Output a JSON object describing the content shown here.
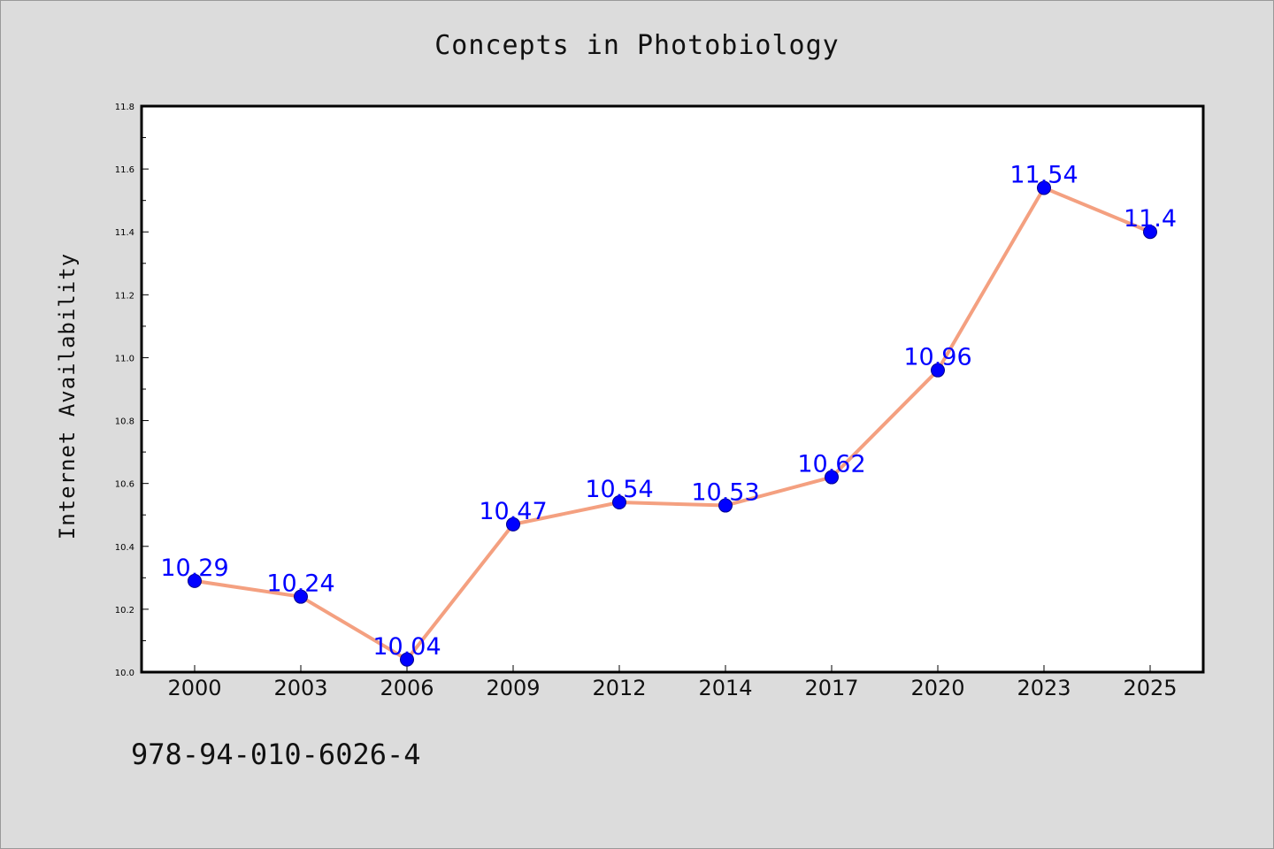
{
  "chart_data": {
    "type": "line",
    "title": "Concepts in Photobiology",
    "xlabel": "",
    "ylabel": "Internet Availability",
    "categories": [
      "2000",
      "2003",
      "2006",
      "2009",
      "2012",
      "2014",
      "2017",
      "2020",
      "2023",
      "2025"
    ],
    "series": [
      {
        "values": [
          10.29,
          10.24,
          10.04,
          10.47,
          10.54,
          10.53,
          10.62,
          10.96,
          11.54,
          11.4
        ],
        "labels": [
          "10.29",
          "10.24",
          "10.04",
          "10.47",
          "10.54",
          "10.53",
          "10.62",
          "10.96",
          "11.54",
          "11.4"
        ]
      }
    ],
    "ylim": [
      10.0,
      11.8
    ],
    "yticks": [
      "10.0",
      "10.2",
      "10.4",
      "10.6",
      "10.8",
      "11.0",
      "11.2",
      "11.4",
      "11.6",
      "11.8"
    ],
    "grid": false,
    "colors": {
      "line": "#f4a080",
      "marker": "#0000ff",
      "data_label": "#0000ff",
      "plot_background": "#ffffff",
      "figure_background": "#dcdcdc"
    }
  },
  "footer": {
    "isbn": "978-94-010-6026-4"
  }
}
